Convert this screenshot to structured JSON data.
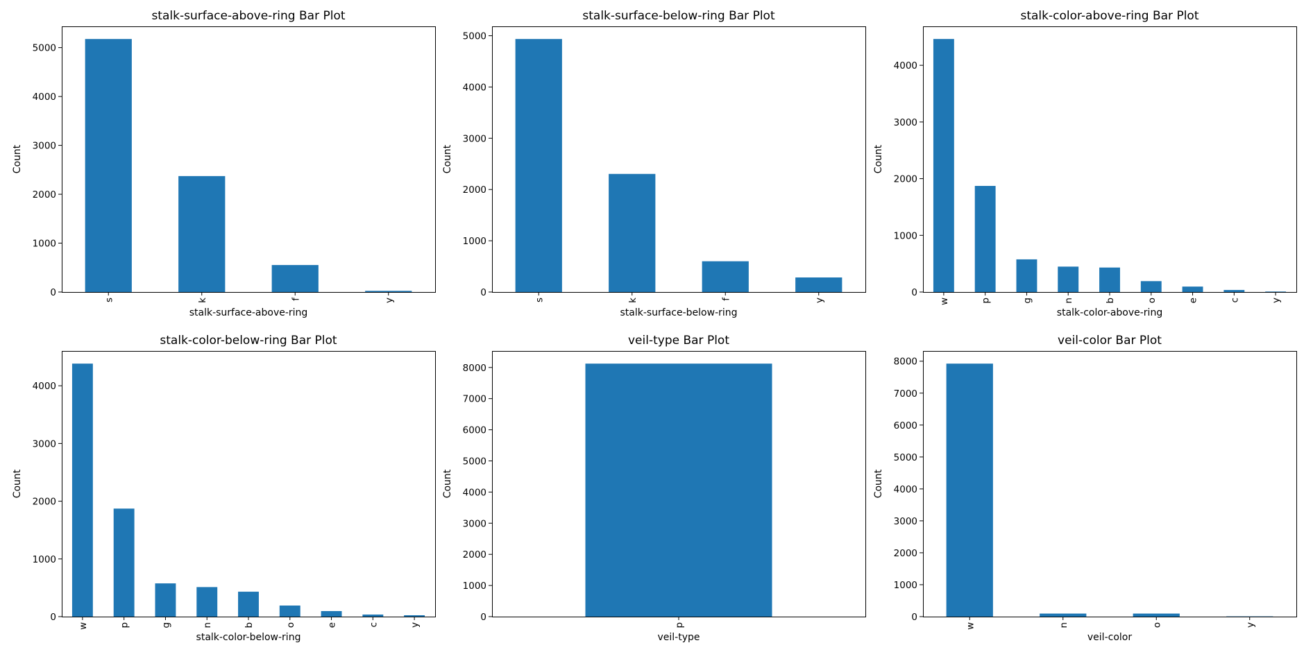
{
  "bar_color": "#1f77b4",
  "chart_data": [
    {
      "type": "bar",
      "title": "stalk-surface-above-ring Bar Plot",
      "xlabel": "stalk-surface-above-ring",
      "ylabel": "Count",
      "categories": [
        "s",
        "k",
        "f",
        "y"
      ],
      "values": [
        5176,
        2372,
        552,
        24
      ],
      "ylim": [
        0,
        5435
      ],
      "yticks": [
        0,
        1000,
        2000,
        3000,
        4000,
        5000
      ],
      "grid": false
    },
    {
      "type": "bar",
      "title": "stalk-surface-below-ring Bar Plot",
      "xlabel": "stalk-surface-below-ring",
      "ylabel": "Count",
      "categories": [
        "s",
        "k",
        "f",
        "y"
      ],
      "values": [
        4936,
        2304,
        600,
        284
      ],
      "ylim": [
        0,
        5183
      ],
      "yticks": [
        0,
        1000,
        2000,
        3000,
        4000,
        5000
      ],
      "grid": false
    },
    {
      "type": "bar",
      "title": "stalk-color-above-ring Bar Plot",
      "xlabel": "stalk-color-above-ring",
      "ylabel": "Count",
      "categories": [
        "w",
        "p",
        "g",
        "n",
        "b",
        "o",
        "e",
        "c",
        "y"
      ],
      "values": [
        4464,
        1872,
        576,
        448,
        432,
        192,
        96,
        36,
        8
      ],
      "ylim": [
        0,
        4687
      ],
      "yticks": [
        0,
        1000,
        2000,
        3000,
        4000
      ],
      "grid": false
    },
    {
      "type": "bar",
      "title": "stalk-color-below-ring Bar Plot",
      "xlabel": "stalk-color-below-ring",
      "ylabel": "Count",
      "categories": [
        "w",
        "p",
        "g",
        "n",
        "b",
        "o",
        "e",
        "c",
        "y"
      ],
      "values": [
        4384,
        1872,
        576,
        512,
        432,
        192,
        96,
        36,
        24
      ],
      "ylim": [
        0,
        4603
      ],
      "yticks": [
        0,
        1000,
        2000,
        3000,
        4000
      ],
      "grid": false
    },
    {
      "type": "bar",
      "title": "veil-type Bar Plot",
      "xlabel": "veil-type",
      "ylabel": "Count",
      "categories": [
        "p"
      ],
      "values": [
        8124
      ],
      "ylim": [
        0,
        8530
      ],
      "yticks": [
        0,
        1000,
        2000,
        3000,
        4000,
        5000,
        6000,
        7000,
        8000
      ],
      "grid": false
    },
    {
      "type": "bar",
      "title": "veil-color Bar Plot",
      "xlabel": "veil-color",
      "ylabel": "Count",
      "categories": [
        "w",
        "n",
        "o",
        "y"
      ],
      "values": [
        7924,
        96,
        96,
        8
      ],
      "ylim": [
        0,
        8320
      ],
      "yticks": [
        0,
        1000,
        2000,
        3000,
        4000,
        5000,
        6000,
        7000,
        8000
      ],
      "grid": false
    }
  ]
}
